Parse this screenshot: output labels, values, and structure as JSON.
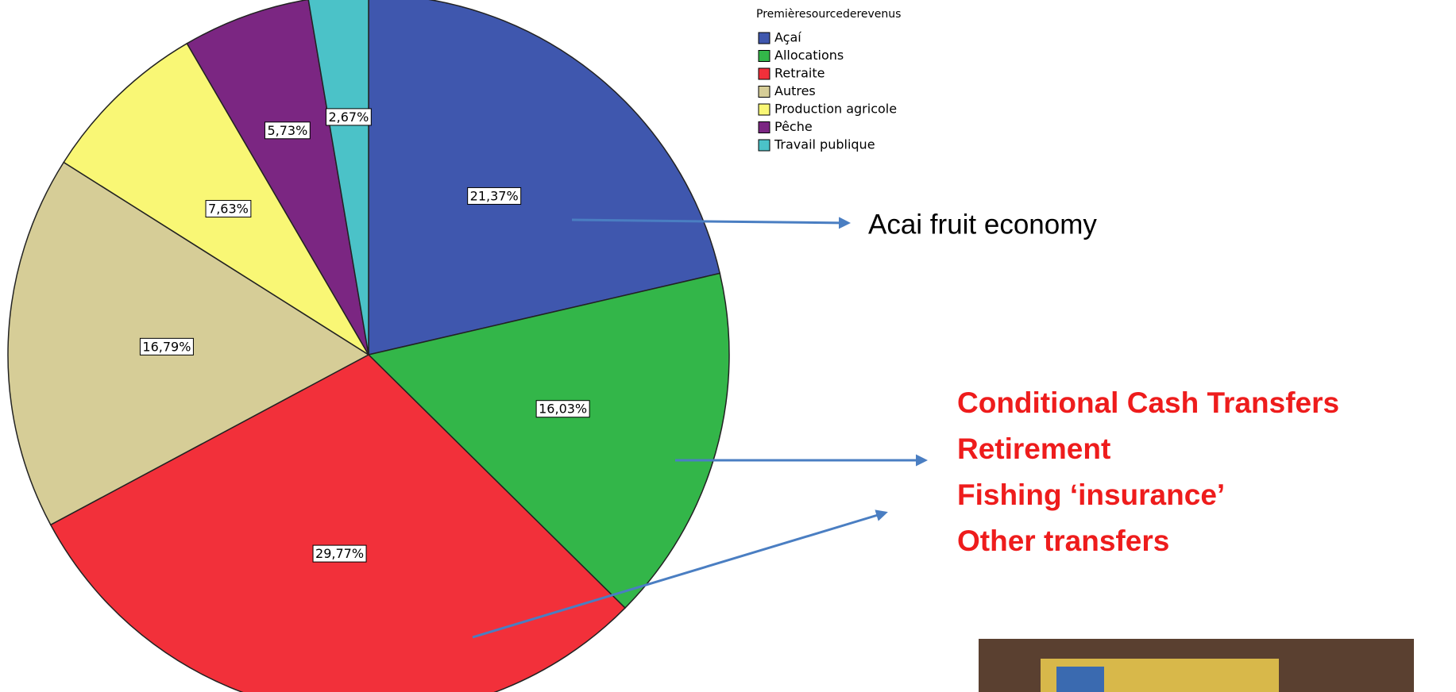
{
  "chart_data": {
    "type": "pie",
    "legend_title": "Premièresourcederevenus",
    "categories": [
      "Açaí",
      "Allocations",
      "Retraite",
      "Autres",
      "Production agricole",
      "Pêche",
      "Travail publique"
    ],
    "values": [
      21.37,
      16.03,
      29.77,
      16.79,
      7.63,
      5.73,
      2.67
    ],
    "value_labels": [
      "21,37%",
      "16,03%",
      "29,77%",
      "16,79%",
      "7,63%",
      "5,73%",
      "2,67%"
    ],
    "colors": [
      "#3f57ae",
      "#33b649",
      "#f2303a",
      "#d6cd97",
      "#f9f775",
      "#7b2682",
      "#4bc2c8"
    ],
    "legend": "top-right",
    "annotation": "Acai fruit economy",
    "callout_lines": [
      "Conditional Cash Transfers",
      "Retirement",
      "Fishing ‘insurance’",
      "Other transfers"
    ]
  }
}
